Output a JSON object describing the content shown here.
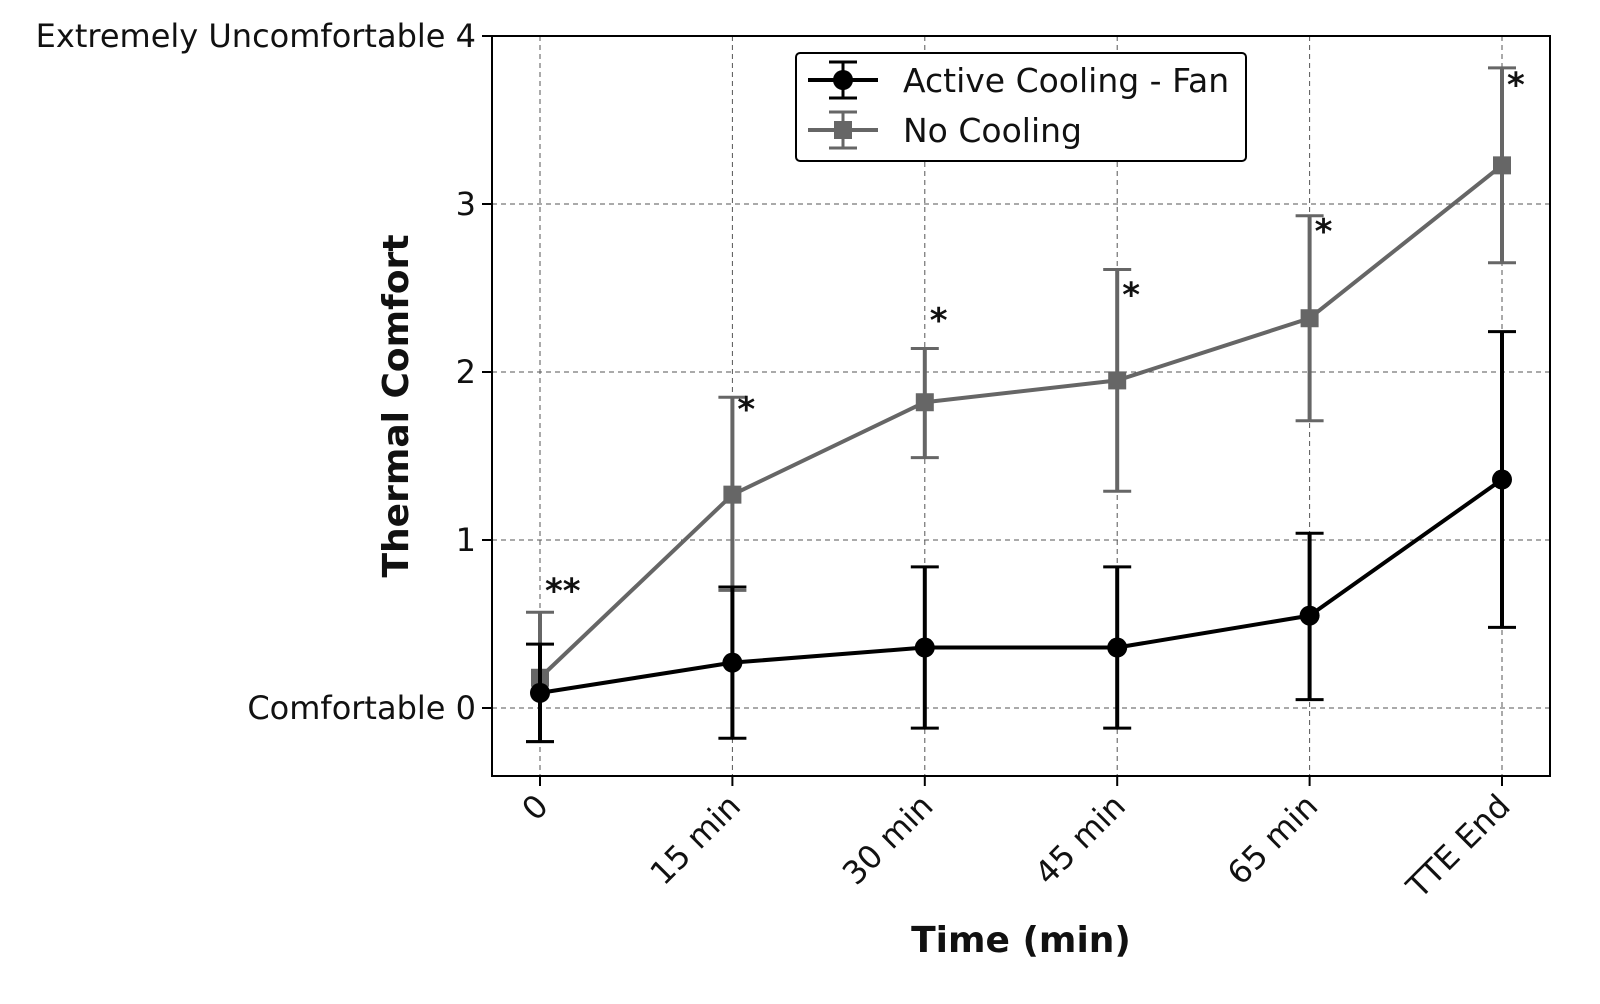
{
  "chart_data": {
    "type": "line",
    "xlabel": "Time (min)",
    "ylabel": "Thermal Comfort",
    "ylim": [
      -0.4,
      4
    ],
    "categories": [
      "0",
      "15 min",
      "30 min",
      "45 min",
      "65 min",
      "TTE End"
    ],
    "yticks": [
      {
        "value": 0,
        "label": "Comfortable 0"
      },
      {
        "value": 1,
        "label": "1"
      },
      {
        "value": 2,
        "label": "2"
      },
      {
        "value": 3,
        "label": "3"
      },
      {
        "value": 4,
        "label": "Extremely Uncomfortable 4"
      }
    ],
    "grid": true,
    "legend_position": "top-center",
    "series": [
      {
        "name": "Active Cooling - Fan",
        "color": "#000000",
        "marker": "circle",
        "values": [
          0.09,
          0.27,
          0.36,
          0.36,
          0.55,
          1.36
        ],
        "err_low": [
          -0.2,
          -0.18,
          -0.12,
          -0.12,
          0.05,
          0.48
        ],
        "err_high": [
          0.38,
          0.72,
          0.84,
          0.84,
          1.04,
          2.24
        ]
      },
      {
        "name": "No Cooling",
        "color": "#666666",
        "marker": "square",
        "values": [
          0.18,
          1.27,
          1.82,
          1.95,
          2.32,
          3.23
        ],
        "err_low": [
          -0.2,
          0.7,
          1.49,
          1.29,
          1.71,
          2.65
        ],
        "err_high": [
          0.57,
          1.85,
          2.14,
          2.61,
          2.93,
          3.81
        ]
      }
    ],
    "annotations": [
      {
        "text": "**",
        "x_index": 0,
        "y": 0.76
      },
      {
        "text": "*",
        "x_index": 1,
        "y": 1.84
      },
      {
        "text": "*",
        "x_index": 2,
        "y": 2.37
      },
      {
        "text": "*",
        "x_index": 3,
        "y": 2.52
      },
      {
        "text": "*",
        "x_index": 4,
        "y": 2.9
      },
      {
        "text": "*",
        "x_index": 5,
        "y": 3.77
      }
    ]
  }
}
